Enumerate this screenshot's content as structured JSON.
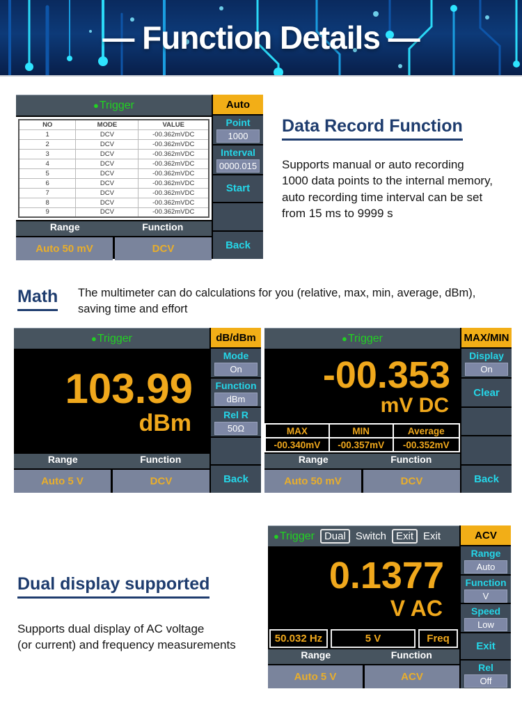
{
  "banner": {
    "title": "— Function Details —"
  },
  "icons": {
    "trigger_dot": "●"
  },
  "sections": {
    "record": {
      "heading": "Data Record Function",
      "body": "Supports manual or auto recording\n1000 data points to the internal memory,\nauto recording time interval can be set\nfrom 15 ms to 9999 s"
    },
    "math": {
      "heading": "Math",
      "body": "The multimeter can do calculations for you (relative, max, min, average, dBm),\nsaving time and effort"
    },
    "dual": {
      "heading": "Dual display supported",
      "body": "Supports dual display of AC voltage\n(or current) and frequency measurements"
    }
  },
  "screens": {
    "record": {
      "trigger": "Trigger",
      "tab": "Auto",
      "table": {
        "headers": [
          "NO",
          "MODE",
          "VALUE"
        ],
        "rows": [
          [
            "1",
            "DCV",
            "-00.362mVDC"
          ],
          [
            "2",
            "DCV",
            "-00.362mVDC"
          ],
          [
            "3",
            "DCV",
            "-00.362mVDC"
          ],
          [
            "4",
            "DCV",
            "-00.362mVDC"
          ],
          [
            "5",
            "DCV",
            "-00.362mVDC"
          ],
          [
            "6",
            "DCV",
            "-00.362mVDC"
          ],
          [
            "7",
            "DCV",
            "-00.362mVDC"
          ],
          [
            "8",
            "DCV",
            "-00.362mVDC"
          ],
          [
            "9",
            "DCV",
            "-00.362mVDC"
          ]
        ]
      },
      "softkeys": [
        {
          "label": "Point",
          "value": "1000"
        },
        {
          "label": "Interval",
          "value": "0000.015"
        },
        {
          "label": "Start"
        },
        {
          "label": ""
        },
        {
          "label": "Back"
        }
      ],
      "bottom": {
        "range_label": "Range",
        "function_label": "Function",
        "range": "Auto 50 mV",
        "func": "DCV"
      }
    },
    "db": {
      "trigger": "Trigger",
      "tab": "dB/dBm",
      "reading": "103.99",
      "unit": "dBm",
      "softkeys": [
        {
          "label": "Mode",
          "value": "On"
        },
        {
          "label": "Function",
          "value": "dBm"
        },
        {
          "label": "Rel R",
          "value": "50Ω"
        },
        {
          "label": ""
        },
        {
          "label": "Back"
        }
      ],
      "bottom": {
        "range_label": "Range",
        "function_label": "Function",
        "range": "Auto 5 V",
        "func": "DCV"
      }
    },
    "maxmin": {
      "trigger": "Trigger",
      "tab": "MAX/MIN",
      "reading": "-00.353",
      "unit": "mV DC",
      "stats": {
        "headers": [
          "MAX",
          "MIN",
          "Average"
        ],
        "values": [
          "-00.340mV",
          "-00.357mV",
          "-00.352mV"
        ]
      },
      "softkeys": [
        {
          "label": "Display",
          "value": "On"
        },
        {
          "label": "Clear"
        },
        {
          "label": ""
        },
        {
          "label": ""
        },
        {
          "label": "Back"
        }
      ],
      "bottom": {
        "range_label": "Range",
        "function_label": "Function",
        "range": "Auto 50 mV",
        "func": "DCV"
      }
    },
    "acv": {
      "trigger": "Trigger",
      "header_buttons": {
        "dual": "Dual",
        "switch": "Switch",
        "exit_boxed": "Exit",
        "exit": "Exit"
      },
      "tab": "ACV",
      "reading": "0.1377",
      "unit": "V AC",
      "status": [
        "50.032 Hz",
        "5 V",
        "Freq"
      ],
      "softkeys": [
        {
          "label": "Range",
          "value": "Auto"
        },
        {
          "label": "Function",
          "value": "V"
        },
        {
          "label": "Speed",
          "value": "Low"
        },
        {
          "label": "Exit"
        },
        {
          "label": "Rel",
          "value": "Off"
        }
      ],
      "bottom": {
        "range_label": "Range",
        "function_label": "Function",
        "range": "Auto 5 V",
        "func": "ACV"
      }
    }
  },
  "colors": {
    "accent_yellow": "#f2ae17",
    "display_yellow": "#f0a81c",
    "cyan": "#25d6e8",
    "green": "#21d321",
    "navy_heading": "#1e3c6e",
    "panel_slate": "#47545f",
    "cell_slate": "#3e4b59",
    "button_grey": "#7a849c"
  }
}
